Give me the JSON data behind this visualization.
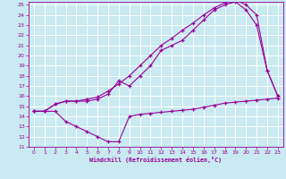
{
  "xlabel": "Windchill (Refroidissement éolien,°C)",
  "bg_color": "#c8eaf0",
  "line_color": "#990099",
  "grid_color": "#ffffff",
  "xlim": [
    -0.5,
    23.5
  ],
  "ylim": [
    11,
    25.3
  ],
  "xticks": [
    0,
    1,
    2,
    3,
    4,
    5,
    6,
    7,
    8,
    9,
    10,
    11,
    12,
    13,
    14,
    15,
    16,
    17,
    18,
    19,
    20,
    21,
    22,
    23
  ],
  "yticks": [
    11,
    12,
    13,
    14,
    15,
    16,
    17,
    18,
    19,
    20,
    21,
    22,
    23,
    24,
    25
  ],
  "line1_x": [
    0,
    1,
    2,
    3,
    4,
    5,
    6,
    7,
    8,
    9,
    10,
    11,
    12,
    13,
    14,
    15,
    16,
    17,
    18,
    19,
    20,
    21,
    22,
    23
  ],
  "line1_y": [
    14.5,
    14.5,
    14.5,
    13.5,
    13.0,
    12.5,
    12.0,
    11.5,
    11.5,
    14.0,
    14.2,
    14.3,
    14.4,
    14.5,
    14.6,
    14.7,
    14.9,
    15.1,
    15.3,
    15.4,
    15.5,
    15.6,
    15.7,
    15.8
  ],
  "line2_x": [
    0,
    1,
    2,
    3,
    4,
    5,
    6,
    7,
    8,
    9,
    10,
    11,
    12,
    13,
    14,
    15,
    16,
    17,
    18,
    19,
    20,
    21,
    22,
    23
  ],
  "line2_y": [
    14.5,
    14.5,
    15.2,
    15.5,
    15.5,
    15.5,
    15.7,
    16.2,
    17.5,
    17.0,
    18.0,
    19.0,
    20.5,
    21.0,
    21.5,
    22.5,
    23.5,
    24.5,
    25.0,
    25.3,
    24.5,
    23.0,
    18.5,
    16.0
  ],
  "line3_x": [
    0,
    1,
    2,
    3,
    4,
    5,
    6,
    7,
    8,
    9,
    10,
    11,
    12,
    13,
    14,
    15,
    16,
    17,
    18,
    19,
    20,
    21,
    22,
    23
  ],
  "line3_y": [
    14.5,
    14.5,
    15.2,
    15.5,
    15.5,
    15.7,
    15.9,
    16.5,
    17.2,
    18.0,
    19.0,
    20.0,
    21.0,
    21.7,
    22.5,
    23.2,
    24.0,
    24.7,
    25.2,
    25.5,
    25.0,
    24.0,
    18.5,
    16.0
  ]
}
